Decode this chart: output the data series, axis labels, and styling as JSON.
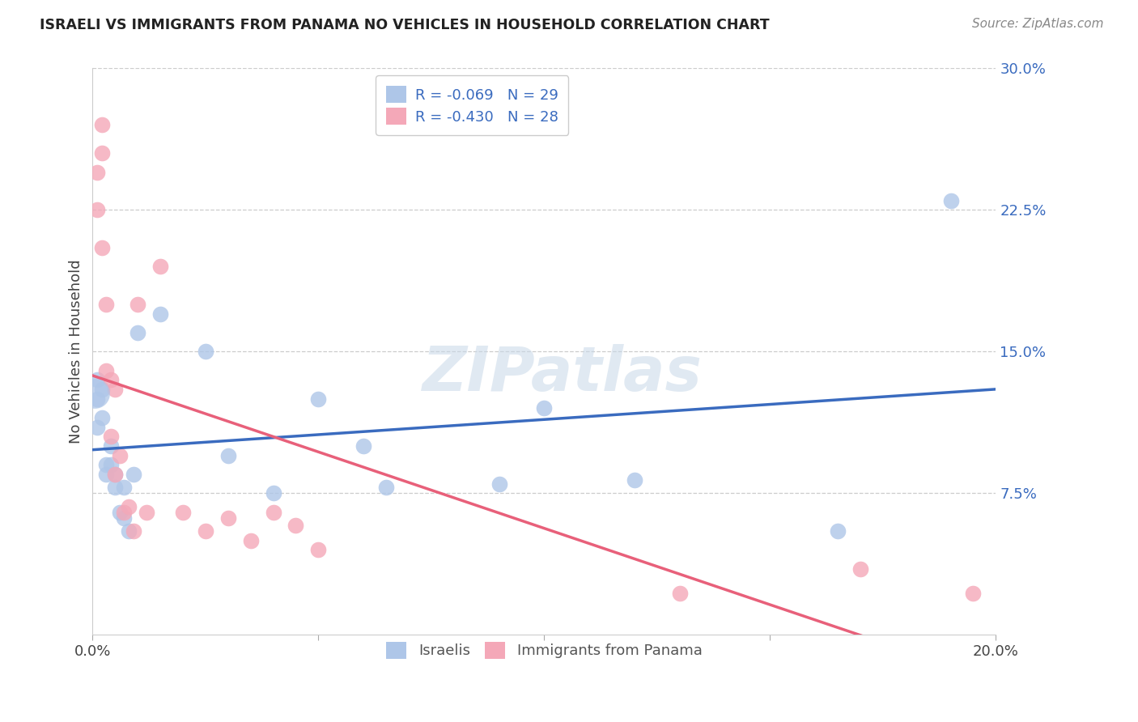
{
  "title": "ISRAELI VS IMMIGRANTS FROM PANAMA NO VEHICLES IN HOUSEHOLD CORRELATION CHART",
  "source": "Source: ZipAtlas.com",
  "ylabel": "No Vehicles in Household",
  "watermark": "ZIPatlas",
  "xmin": 0.0,
  "xmax": 0.2,
  "ymin": 0.0,
  "ymax": 0.3,
  "yticks": [
    0.075,
    0.15,
    0.225,
    0.3
  ],
  "ytick_labels": [
    "7.5%",
    "15.0%",
    "22.5%",
    "30.0%"
  ],
  "xtick_labels": [
    "0.0%",
    "",
    "",
    "",
    "20.0%"
  ],
  "israeli_color": "#aec6e8",
  "panama_color": "#f4a8b8",
  "israeli_line_color": "#3a6bbf",
  "panama_line_color": "#e8607a",
  "israeli_R": -0.069,
  "israeli_N": 29,
  "panama_R": -0.43,
  "panama_N": 28,
  "legend_label_1": "Israelis",
  "legend_label_2": "Immigrants from Panama",
  "israeli_x": [
    0.001,
    0.001,
    0.001,
    0.002,
    0.002,
    0.003,
    0.003,
    0.004,
    0.004,
    0.005,
    0.005,
    0.006,
    0.007,
    0.007,
    0.008,
    0.009,
    0.01,
    0.015,
    0.025,
    0.03,
    0.04,
    0.05,
    0.06,
    0.065,
    0.09,
    0.1,
    0.12,
    0.165,
    0.19
  ],
  "israeli_y": [
    0.135,
    0.125,
    0.11,
    0.13,
    0.115,
    0.09,
    0.085,
    0.1,
    0.09,
    0.085,
    0.078,
    0.065,
    0.078,
    0.062,
    0.055,
    0.085,
    0.16,
    0.17,
    0.15,
    0.095,
    0.075,
    0.125,
    0.1,
    0.078,
    0.08,
    0.12,
    0.082,
    0.055,
    0.23
  ],
  "panama_x": [
    0.001,
    0.001,
    0.002,
    0.002,
    0.002,
    0.003,
    0.003,
    0.004,
    0.004,
    0.005,
    0.005,
    0.006,
    0.007,
    0.008,
    0.009,
    0.01,
    0.012,
    0.015,
    0.02,
    0.025,
    0.03,
    0.035,
    0.04,
    0.045,
    0.05,
    0.13,
    0.17,
    0.195
  ],
  "panama_y": [
    0.245,
    0.225,
    0.27,
    0.255,
    0.205,
    0.175,
    0.14,
    0.135,
    0.105,
    0.13,
    0.085,
    0.095,
    0.065,
    0.068,
    0.055,
    0.175,
    0.065,
    0.195,
    0.065,
    0.055,
    0.062,
    0.05,
    0.065,
    0.058,
    0.045,
    0.022,
    0.035,
    0.022
  ]
}
